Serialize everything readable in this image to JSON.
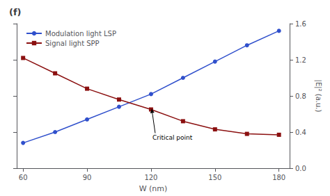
{
  "chart_data": {
    "type": "line",
    "title": "(f)",
    "xlabel": "W (nm)",
    "ylabel": "|E|² (a.u.)",
    "x": [
      60,
      75,
      90,
      105,
      120,
      135,
      150,
      165,
      180
    ],
    "series": [
      {
        "name": "Modulation light LSP",
        "color": "#3050cc",
        "marker": "circle",
        "values": [
          0.28,
          0.4,
          0.54,
          0.68,
          0.82,
          1.0,
          1.18,
          1.36,
          1.52
        ]
      },
      {
        "name": "Signal light SPP",
        "color": "#8b1010",
        "marker": "square",
        "values": [
          1.22,
          1.05,
          0.88,
          0.76,
          0.65,
          0.52,
          0.43,
          0.38,
          0.37
        ]
      }
    ],
    "xlim": [
      57,
      185
    ],
    "xticks": [
      60,
      90,
      120,
      150,
      180
    ],
    "ylim": [
      0.0,
      1.6
    ],
    "yticks": [
      {
        "value": 0,
        "label": "0.0"
      },
      0.4,
      0.8,
      1.2,
      1.6
    ],
    "grid": false,
    "legend": "upper left",
    "annotations": [
      {
        "text": "Critical point",
        "x": 120,
        "y": 0.68
      }
    ]
  }
}
